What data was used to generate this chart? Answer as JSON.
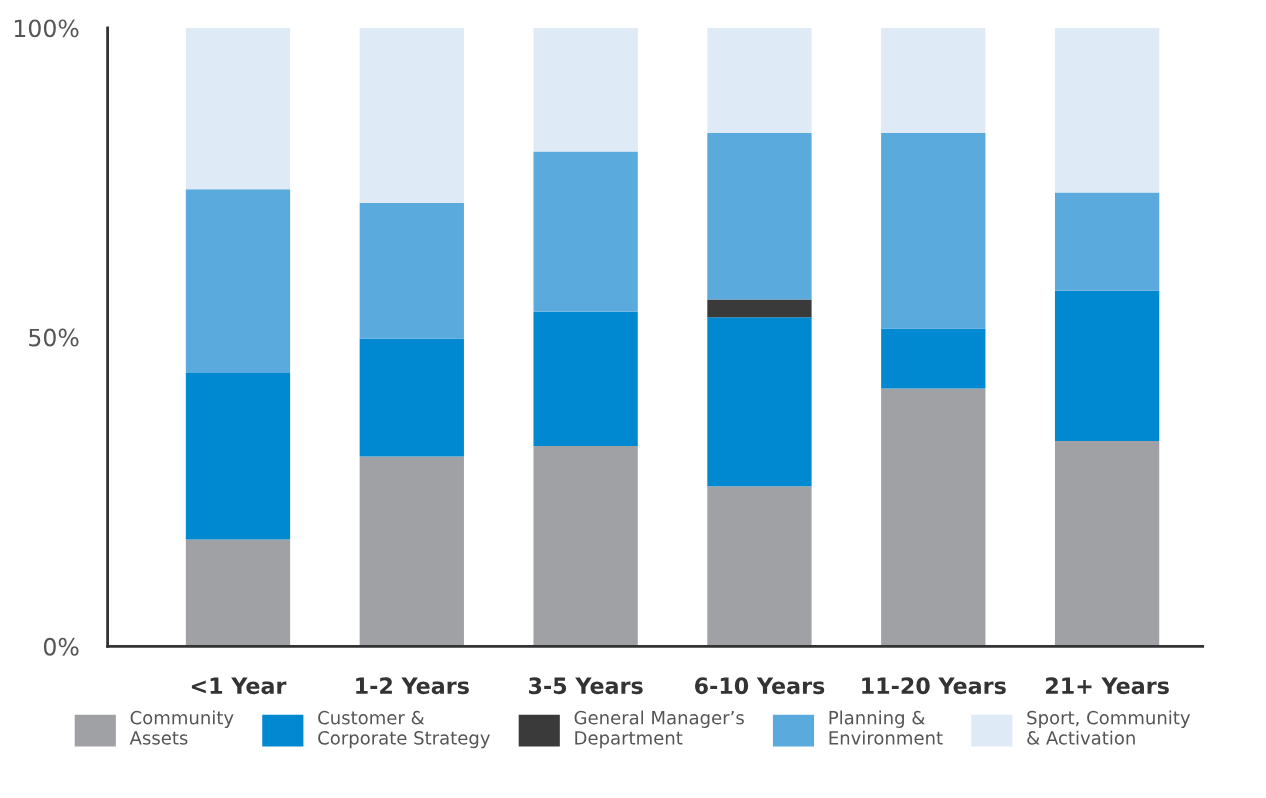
{
  "chart_data": {
    "type": "bar",
    "stacked": true,
    "categories": [
      "<1 Year",
      "1-2 Years",
      "3-5 Years",
      "6-10 Years",
      "11-20 Years",
      "21+ Years"
    ],
    "series": [
      {
        "name": "Community Assets",
        "color": "#a0a1a4",
        "values": [
          17.3,
          30.7,
          32.4,
          25.9,
          41.7,
          33.2
        ]
      },
      {
        "name": "Customer & Corporate Strategy",
        "color": "#0088d1",
        "values": [
          26.9,
          19.1,
          21.7,
          27.3,
          9.7,
          24.3
        ]
      },
      {
        "name": "General Manager’s Department",
        "color": "#3a3a3a",
        "values": [
          0,
          0,
          0,
          2.9,
          0,
          0
        ]
      },
      {
        "name": "Planning & Environment",
        "color": "#5aaadd",
        "values": [
          29.7,
          21.9,
          25.9,
          26.9,
          31.6,
          15.9
        ]
      },
      {
        "name": "Sport, Community & Activation",
        "color": "#deebf7",
        "values": [
          26.1,
          28.3,
          20.1,
          17.0,
          17.0,
          26.7
        ]
      }
    ],
    "ylim": [
      0,
      100
    ],
    "yticks": [
      {
        "value": 0,
        "label": "0%"
      },
      {
        "value": 50,
        "label": "50%"
      },
      {
        "value": 100,
        "label": "100%"
      }
    ],
    "grid": false,
    "legend": "bottom"
  }
}
